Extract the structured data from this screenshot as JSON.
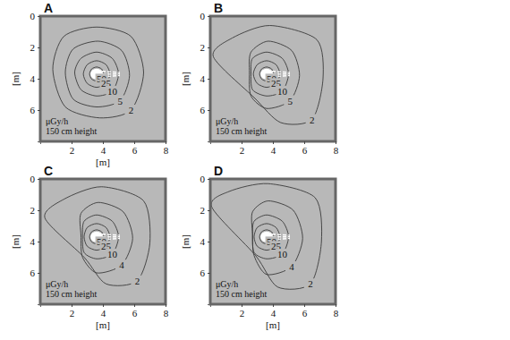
{
  "chart_data": [
    {
      "type": "contour",
      "title": "A",
      "xlim": [
        0,
        8
      ],
      "ylim": [
        0,
        8
      ],
      "xticks": [
        2,
        4,
        6,
        8
      ],
      "yticks": [
        0,
        2,
        4,
        6
      ],
      "x_label": "[m]",
      "y_label": "[m]",
      "annotations": [
        "μGy/h",
        "150 cm height"
      ],
      "contours": [
        {
          "level": 50,
          "x": [
            4.05,
            3.92,
            3.6,
            3.28,
            3.15,
            3.28,
            3.6,
            3.92
          ],
          "y": [
            3.7,
            4.02,
            4.15,
            4.02,
            3.7,
            3.38,
            3.25,
            3.38
          ]
        },
        {
          "level": 25,
          "x": [
            4.45,
            4.2,
            3.6,
            3.0,
            2.75,
            3.0,
            3.6,
            4.2
          ],
          "y": [
            3.7,
            4.3,
            4.55,
            4.3,
            3.7,
            3.1,
            2.85,
            3.1
          ]
        },
        {
          "level": 10,
          "x": [
            5.0,
            4.6,
            3.6,
            2.6,
            2.2,
            2.6,
            3.6,
            4.6
          ],
          "y": [
            3.7,
            4.8,
            5.1,
            4.7,
            3.6,
            2.7,
            2.3,
            2.7
          ]
        },
        {
          "level": 5,
          "x": [
            5.7,
            5.1,
            3.6,
            2.1,
            1.6,
            2.1,
            3.7,
            5.2
          ],
          "y": [
            3.8,
            5.4,
            5.8,
            5.3,
            3.6,
            2.1,
            1.6,
            2.2
          ]
        },
        {
          "level": 2,
          "x": [
            6.6,
            5.8,
            3.8,
            1.6,
            0.8,
            1.5,
            3.6,
            5.8
          ],
          "y": [
            3.6,
            6.0,
            6.5,
            5.8,
            3.4,
            1.3,
            0.7,
            1.3
          ]
        }
      ]
    },
    {
      "type": "contour",
      "title": "B",
      "xlim": [
        0,
        8
      ],
      "ylim": [
        0,
        8
      ],
      "xticks": [
        2,
        4,
        6,
        8
      ],
      "yticks": [
        0,
        2,
        4,
        6
      ],
      "y_label": "[m]",
      "annotations": [
        "μGy/h",
        "150 cm height"
      ],
      "contours": [
        {
          "level": 50,
          "x": [
            4.05,
            3.92,
            3.6,
            3.28,
            3.15,
            3.28,
            3.6,
            3.92
          ],
          "y": [
            3.7,
            4.02,
            4.15,
            4.02,
            3.7,
            3.38,
            3.25,
            3.38
          ]
        },
        {
          "level": 25,
          "x": [
            4.45,
            4.2,
            3.6,
            3.0,
            2.75,
            3.0,
            3.6,
            4.2
          ],
          "y": [
            3.7,
            4.3,
            4.55,
            4.3,
            3.7,
            3.1,
            2.85,
            3.1
          ]
        },
        {
          "level": 10,
          "x": [
            5.0,
            4.6,
            3.6,
            2.7,
            2.6,
            2.7,
            3.6,
            4.6
          ],
          "y": [
            3.7,
            4.8,
            5.1,
            4.7,
            3.6,
            2.7,
            2.3,
            2.7
          ]
        },
        {
          "level": 5,
          "x": [
            5.7,
            5.1,
            3.6,
            2.6,
            2.5,
            2.6,
            3.7,
            5.2
          ],
          "y": [
            3.8,
            5.4,
            5.9,
            5.1,
            3.6,
            2.3,
            1.6,
            2.2
          ]
        },
        {
          "level": 2,
          "x": [
            7.2,
            6.5,
            4.5,
            2.8,
            0.2,
            1.4,
            3.8,
            6.8
          ],
          "y": [
            4.0,
            6.6,
            6.8,
            5.2,
            2.6,
            1.4,
            0.6,
            1.5
          ]
        }
      ]
    },
    {
      "type": "contour",
      "title": "C",
      "xlim": [
        0,
        8
      ],
      "ylim": [
        0,
        8
      ],
      "xticks": [
        2,
        4,
        6,
        8
      ],
      "yticks": [
        0,
        2,
        4,
        6
      ],
      "x_label": "[m]",
      "y_label": "[m]",
      "annotations": [
        "μGy/h",
        "150 cm height"
      ],
      "contours": [
        {
          "level": 50,
          "x": [
            4.05,
            3.92,
            3.6,
            3.28,
            3.15,
            3.28,
            3.6,
            3.92
          ],
          "y": [
            3.7,
            4.02,
            4.15,
            4.02,
            3.7,
            3.38,
            3.25,
            3.38
          ]
        },
        {
          "level": 25,
          "x": [
            4.45,
            4.2,
            3.6,
            3.0,
            2.8,
            3.0,
            3.6,
            4.2
          ],
          "y": [
            3.7,
            4.3,
            4.55,
            4.3,
            3.7,
            3.1,
            2.85,
            3.1
          ]
        },
        {
          "level": 10,
          "x": [
            5.0,
            4.6,
            3.6,
            2.8,
            2.7,
            2.8,
            3.6,
            4.6
          ],
          "y": [
            3.7,
            4.8,
            5.1,
            4.7,
            3.6,
            2.7,
            2.3,
            2.7
          ]
        },
        {
          "level": 4,
          "x": [
            5.9,
            5.2,
            3.6,
            2.7,
            2.6,
            2.6,
            3.7,
            5.3
          ],
          "y": [
            3.8,
            5.5,
            6.0,
            5.0,
            3.6,
            2.2,
            1.5,
            2.1
          ]
        },
        {
          "level": 2,
          "x": [
            7.0,
            6.2,
            4.2,
            2.8,
            0.3,
            1.5,
            3.9,
            6.6
          ],
          "y": [
            4.1,
            6.5,
            6.7,
            5.0,
            2.5,
            1.3,
            0.5,
            1.4
          ]
        }
      ]
    },
    {
      "type": "contour",
      "title": "D",
      "xlim": [
        0,
        8
      ],
      "ylim": [
        0,
        8
      ],
      "xticks": [
        2,
        4,
        6,
        8
      ],
      "yticks": [
        0,
        2,
        4,
        6
      ],
      "x_label": "[m]",
      "y_label": "[m]",
      "annotations": [
        "μGy/h",
        "150 cm height"
      ],
      "contours": [
        {
          "level": 50,
          "x": [
            4.05,
            3.92,
            3.6,
            3.28,
            3.15,
            3.28,
            3.6,
            3.92
          ],
          "y": [
            3.7,
            4.02,
            4.15,
            4.02,
            3.7,
            3.38,
            3.25,
            3.38
          ]
        },
        {
          "level": 25,
          "x": [
            4.45,
            4.2,
            3.6,
            3.0,
            2.8,
            3.0,
            3.6,
            4.2
          ],
          "y": [
            3.7,
            4.3,
            4.55,
            4.3,
            3.7,
            3.1,
            2.85,
            3.1
          ]
        },
        {
          "level": 10,
          "x": [
            5.0,
            4.6,
            3.6,
            2.8,
            2.7,
            2.8,
            3.6,
            4.6
          ],
          "y": [
            3.7,
            4.8,
            5.1,
            4.7,
            3.6,
            2.7,
            2.3,
            2.7
          ]
        },
        {
          "level": 4,
          "x": [
            5.9,
            5.2,
            3.6,
            2.8,
            2.7,
            2.7,
            3.7,
            5.3
          ],
          "y": [
            3.8,
            5.6,
            6.1,
            4.9,
            3.5,
            2.1,
            1.4,
            2.0
          ]
        },
        {
          "level": 2,
          "x": [
            7.1,
            6.4,
            4.3,
            2.9,
            0.1,
            1.2,
            3.7,
            6.7
          ],
          "y": [
            4.0,
            6.7,
            6.9,
            4.9,
            1.8,
            0.8,
            0.3,
            1.2
          ]
        }
      ]
    }
  ]
}
